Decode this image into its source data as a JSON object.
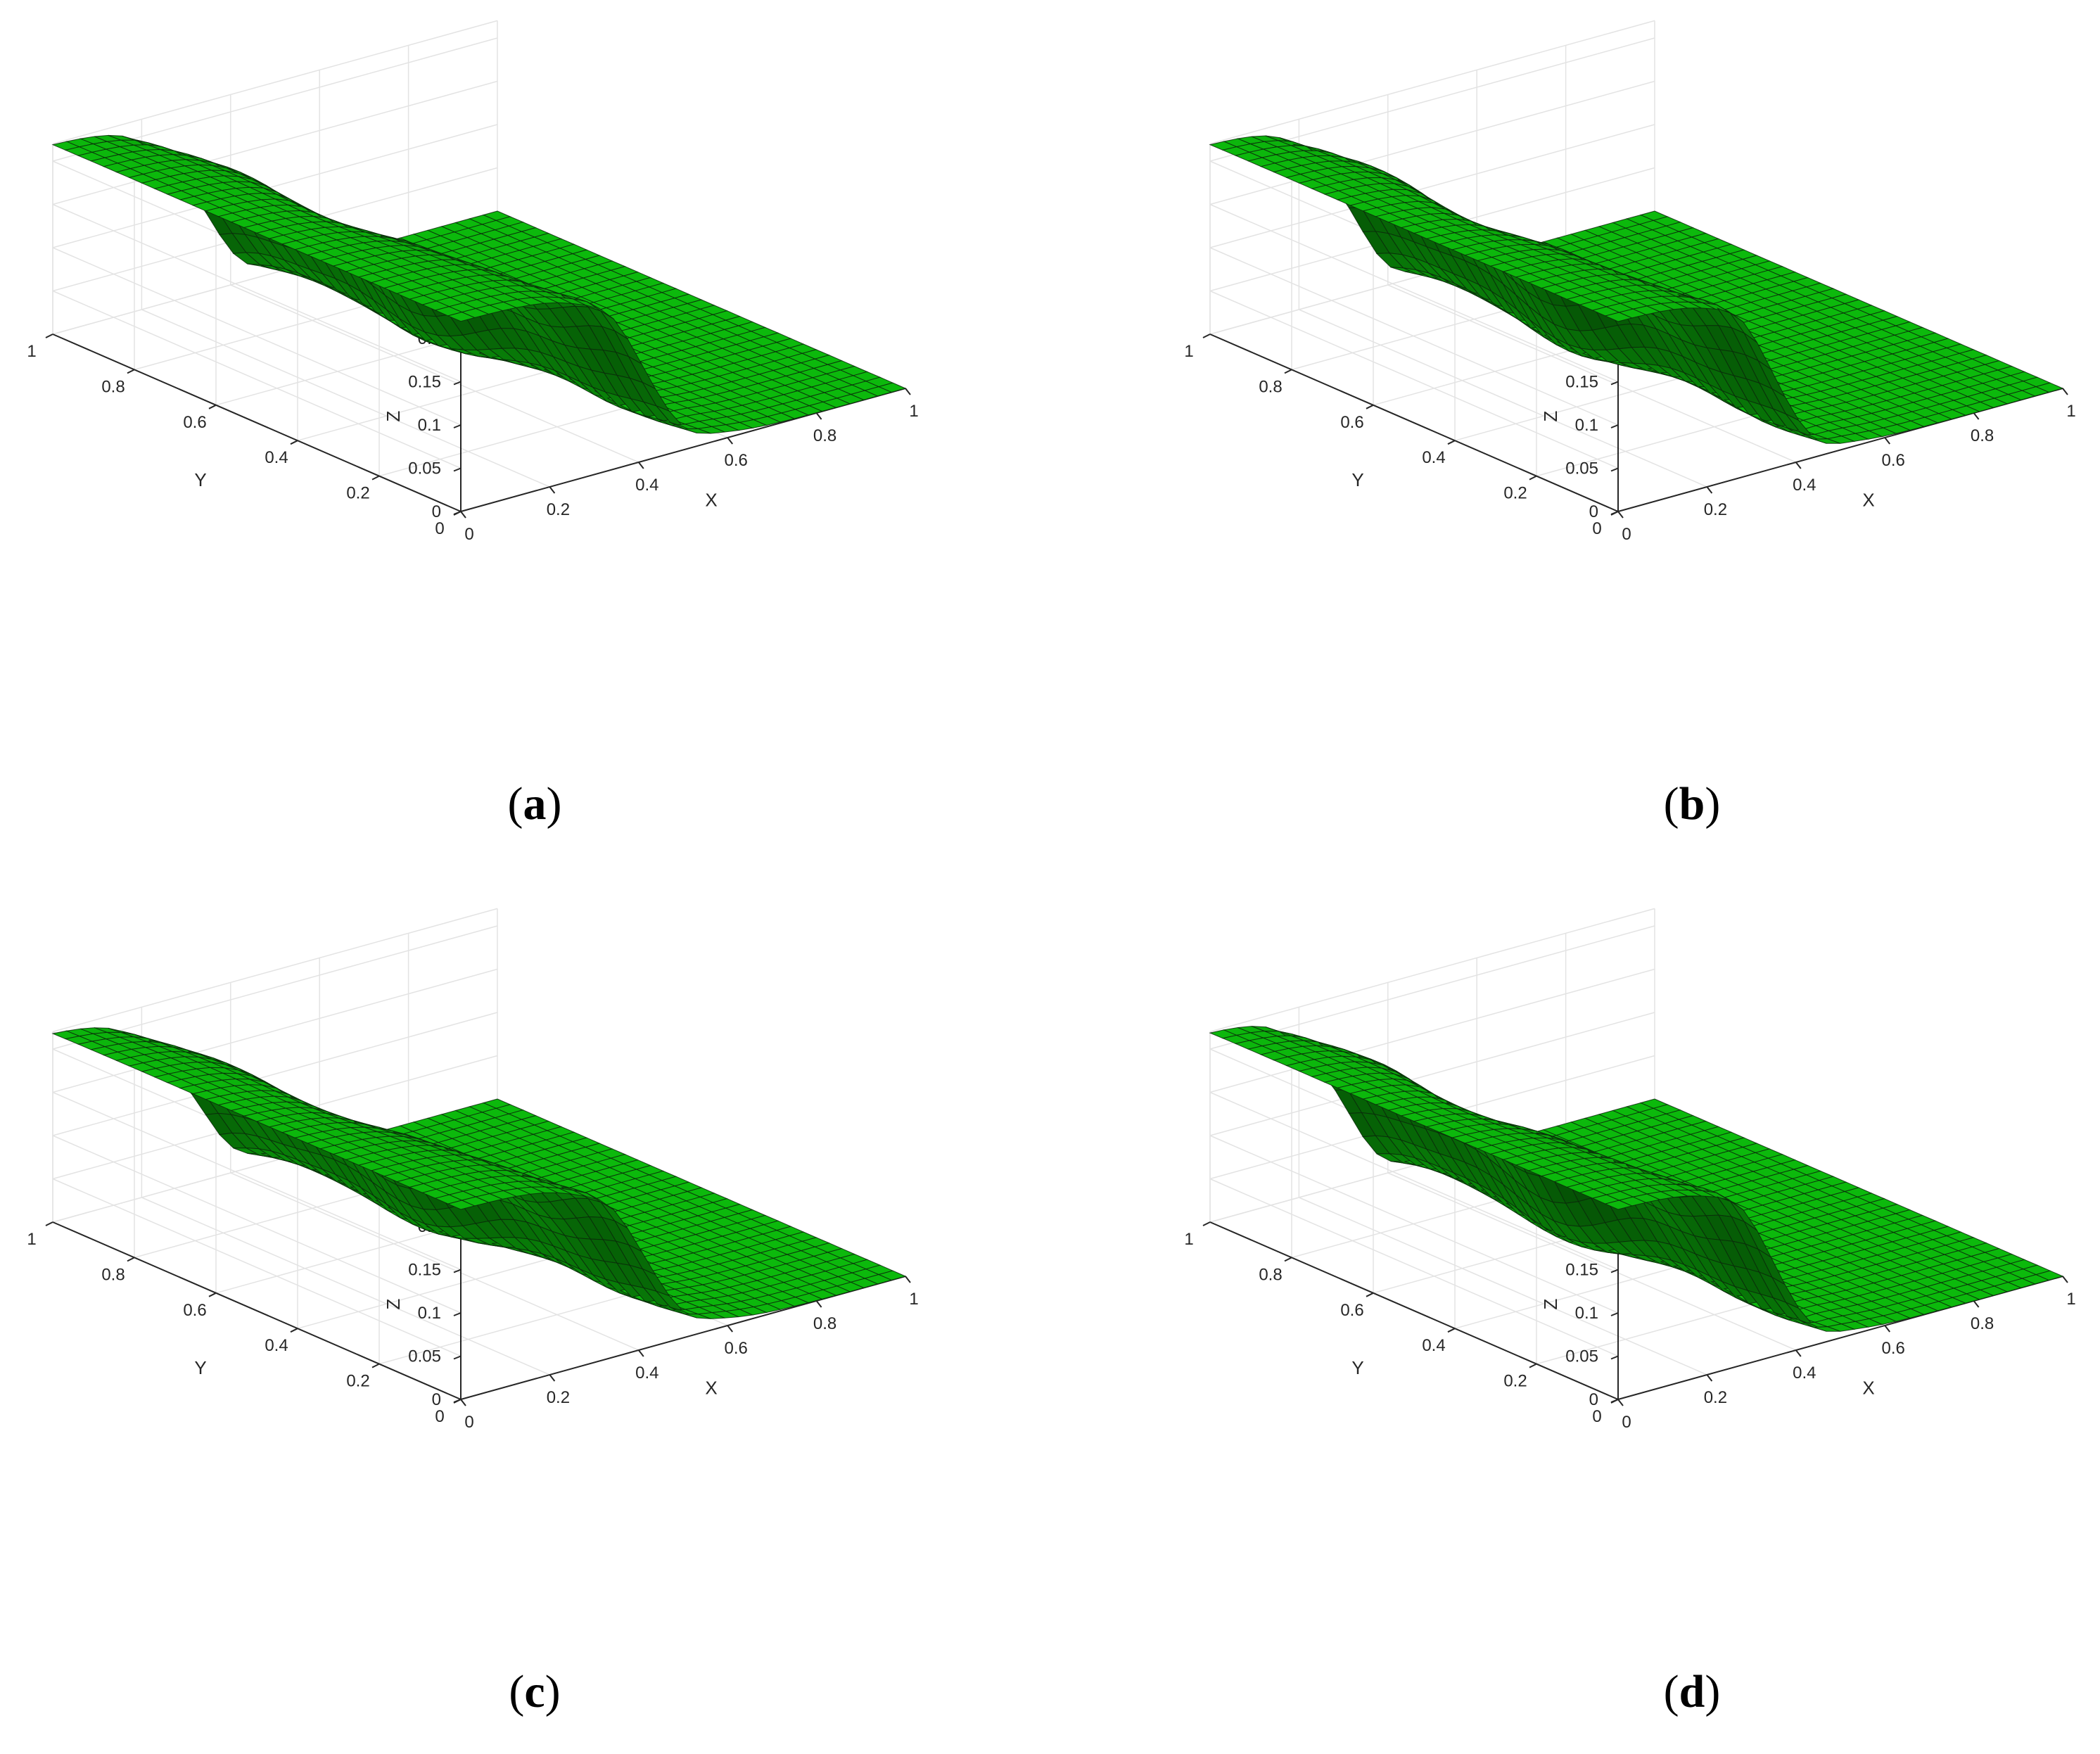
{
  "chart_data": [
    {
      "type": "surface",
      "caption_open": "(",
      "caption_letter": "a",
      "caption_close": ")",
      "xlabel": "X",
      "ylabel": "Y",
      "zlabel": "Z",
      "xlim": [
        0,
        1
      ],
      "ylim": [
        0,
        1
      ],
      "zlim": [
        0,
        0.22
      ],
      "xticks": [
        "0",
        "0.2",
        "0.4",
        "0.6",
        "0.8",
        "1"
      ],
      "yticks": [
        "0",
        "0.2",
        "0.4",
        "0.6",
        "0.8",
        "1"
      ],
      "zticks": [
        "0",
        "0.05",
        "0.1",
        "0.15",
        "0.2"
      ],
      "surface": {
        "high": 0.22,
        "low": 0.0,
        "front_mid": 0.4,
        "left_mid": 0.32,
        "width": 0.06,
        "grid": 32,
        "bumps": 0.05
      },
      "grid": true,
      "color": "#11e411"
    },
    {
      "type": "surface",
      "caption_open": "(",
      "caption_letter": "b",
      "caption_close": ")",
      "xlabel": "X",
      "ylabel": "Y",
      "zlabel": "Z",
      "xlim": [
        0,
        1
      ],
      "ylim": [
        0,
        1
      ],
      "zlim": [
        0,
        0.22
      ],
      "xticks": [
        "0",
        "0.2",
        "0.4",
        "0.6",
        "0.8",
        "1"
      ],
      "yticks": [
        "0",
        "0.2",
        "0.4",
        "0.6",
        "0.8",
        "1"
      ],
      "zticks": [
        "0",
        "0.05",
        "0.1",
        "0.15",
        "0.2"
      ],
      "surface": {
        "high": 0.22,
        "low": 0.0,
        "front_mid": 0.34,
        "left_mid": 0.3,
        "width": 0.055,
        "grid": 32,
        "bumps": 0.05
      },
      "grid": true,
      "color": "#11e411"
    },
    {
      "type": "surface",
      "caption_open": "(",
      "caption_letter": "c",
      "caption_close": ")",
      "xlabel": "X",
      "ylabel": "Y",
      "zlabel": "Z",
      "xlim": [
        0,
        1
      ],
      "ylim": [
        0,
        1
      ],
      "zlim": [
        0,
        0.22
      ],
      "xticks": [
        "0",
        "0.2",
        "0.4",
        "0.6",
        "0.8",
        "1"
      ],
      "yticks": [
        "0",
        "0.2",
        "0.4",
        "0.6",
        "0.8",
        "1"
      ],
      "zticks": [
        "0",
        "0.05",
        "0.1",
        "0.15",
        "0.2"
      ],
      "surface": {
        "high": 0.22,
        "low": 0.0,
        "front_mid": 0.4,
        "left_mid": 0.3,
        "width": 0.065,
        "grid": 32,
        "bumps": 0.05
      },
      "grid": true,
      "color": "#11e411"
    },
    {
      "type": "surface",
      "caption_open": "(",
      "caption_letter": "d",
      "caption_close": ")",
      "xlabel": "X",
      "ylabel": "Y",
      "zlabel": "Z",
      "xlim": [
        0,
        1
      ],
      "ylim": [
        0,
        1
      ],
      "zlim": [
        0,
        0.22
      ],
      "xticks": [
        "0",
        "0.2",
        "0.4",
        "0.6",
        "0.8",
        "1"
      ],
      "yticks": [
        "0",
        "0.2",
        "0.4",
        "0.6",
        "0.8",
        "1"
      ],
      "zticks": [
        "0",
        "0.05",
        "0.1",
        "0.15",
        "0.2"
      ],
      "surface": {
        "high": 0.22,
        "low": 0.0,
        "front_mid": 0.34,
        "left_mid": 0.28,
        "width": 0.055,
        "grid": 32,
        "bumps": 0.05
      },
      "grid": true,
      "color": "#11e411"
    }
  ]
}
